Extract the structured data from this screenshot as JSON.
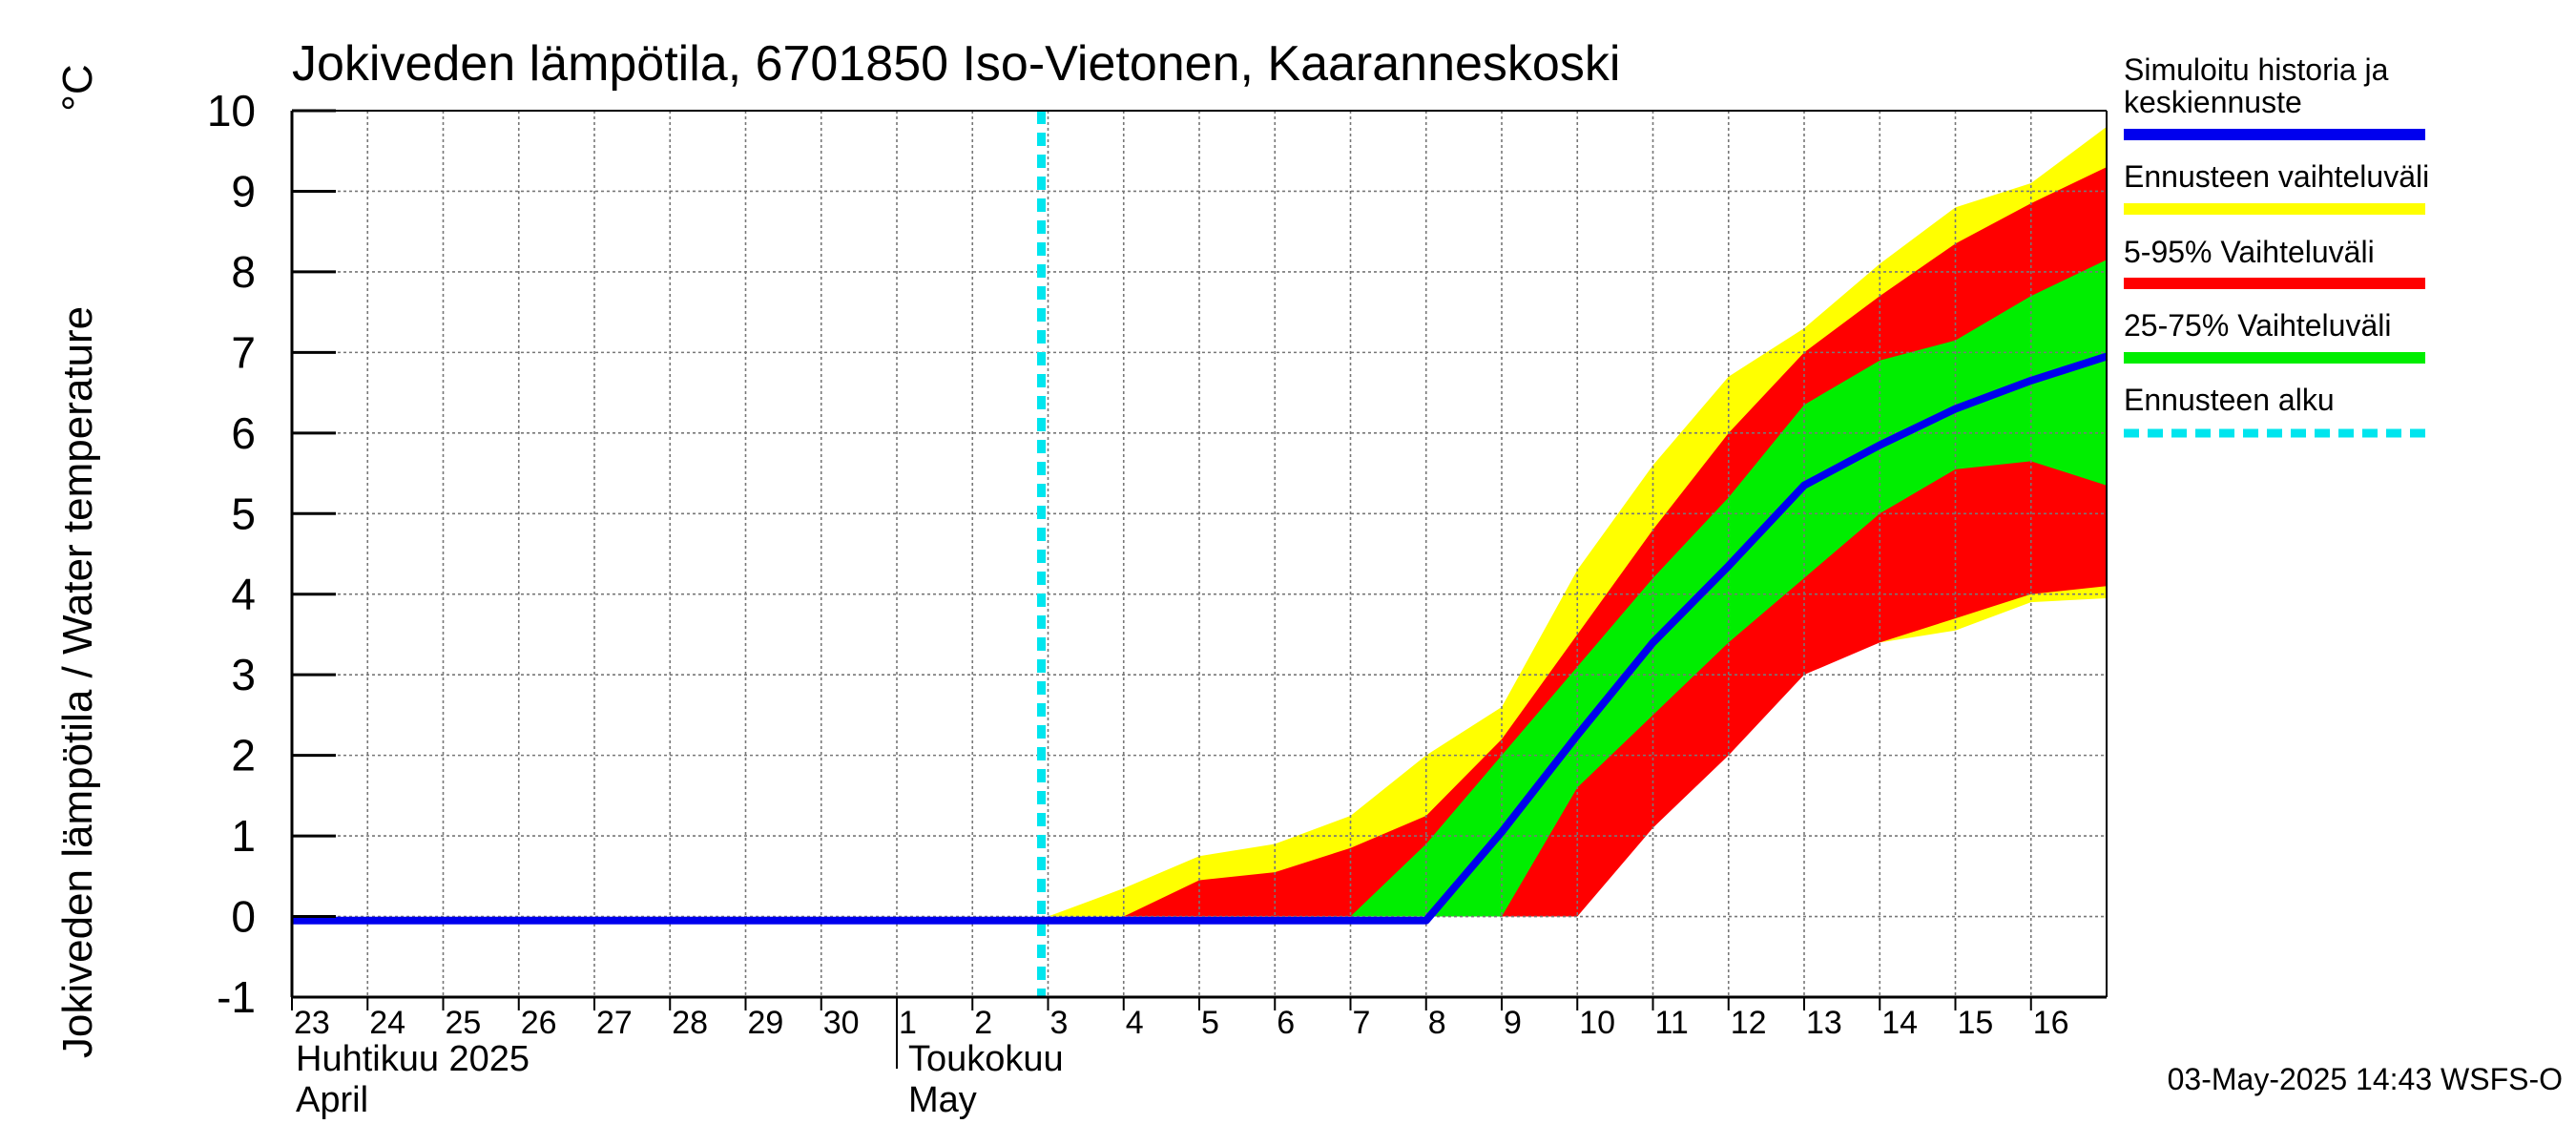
{
  "chart_data": {
    "type": "area",
    "title": "Jokiveden lämpötila, 6701850 Iso-Vietonen, Kaaranneskoski",
    "ylabel": "Jokiveden lämpötila / Water temperature",
    "yunit": "°C",
    "ylim": [
      -1,
      10
    ],
    "yticks": [
      "-1",
      "0",
      "1",
      "2",
      "3",
      "4",
      "5",
      "6",
      "7",
      "8",
      "9",
      "10"
    ],
    "x_start_day": 0,
    "x_end_day": 24,
    "xtick_labels": [
      "23",
      "24",
      "25",
      "26",
      "27",
      "28",
      "29",
      "30",
      "1",
      "2",
      "3",
      "4",
      "5",
      "6",
      "7",
      "8",
      "9",
      "10",
      "11",
      "12",
      "13",
      "14",
      "15",
      "16"
    ],
    "month_labels": [
      {
        "fi": "Huhtikuu  2025",
        "en": "April",
        "day": 0
      },
      {
        "fi": "Toukokuu",
        "en": "May",
        "day": 8
      }
    ],
    "month_separator_day": 8,
    "forecast_start_day": 10,
    "grid": true,
    "x": [
      0,
      1,
      2,
      3,
      4,
      5,
      6,
      7,
      8,
      9,
      10,
      11,
      12,
      13,
      14,
      15,
      16,
      17,
      18,
      19,
      20,
      21,
      22,
      23,
      24
    ],
    "series": [
      {
        "name": "Ennusteen vaihteluväli",
        "color": "#ffff00",
        "kind": "band",
        "from_index": 10,
        "upper": [
          0,
          0.35,
          0.75,
          0.9,
          1.25,
          2.0,
          2.6,
          4.3,
          5.6,
          6.7,
          7.3,
          8.1,
          8.8,
          9.1,
          9.8
        ],
        "lower": [
          0,
          0,
          0,
          0,
          0,
          0,
          0,
          0,
          1.2,
          2.3,
          3.1,
          3.4,
          3.55,
          3.9,
          3.95
        ]
      },
      {
        "name": "5-95% Vaihteluväli",
        "color": "#ff0000",
        "kind": "band",
        "from_index": 10,
        "upper": [
          0,
          0,
          0.45,
          0.55,
          0.85,
          1.25,
          2.2,
          3.5,
          4.8,
          6.0,
          7.0,
          7.7,
          8.35,
          8.85,
          9.3
        ],
        "lower": [
          0,
          0,
          0,
          0,
          0,
          0,
          0,
          0,
          1.1,
          2.0,
          3.0,
          3.4,
          3.7,
          4.0,
          4.1
        ]
      },
      {
        "name": "25-75% Vaihteluväli",
        "color": "#00ee00",
        "kind": "band",
        "from_index": 10,
        "upper": [
          0,
          0,
          0,
          0,
          0,
          0.9,
          2.0,
          3.1,
          4.2,
          5.2,
          6.35,
          6.9,
          7.15,
          7.7,
          8.15
        ],
        "lower": [
          0,
          0,
          0,
          0,
          0,
          0,
          0,
          1.6,
          2.5,
          3.4,
          4.2,
          5.0,
          5.55,
          5.65,
          5.35
        ]
      },
      {
        "name": "Simuloitu historia ja keskiennuste",
        "color": "#0000ee",
        "kind": "line",
        "from_index": 0,
        "values": [
          -0.05,
          -0.05,
          -0.05,
          -0.05,
          -0.05,
          -0.05,
          -0.05,
          -0.05,
          -0.05,
          -0.05,
          -0.05,
          -0.05,
          -0.05,
          -0.05,
          -0.05,
          -0.05,
          1.05,
          2.25,
          3.4,
          4.35,
          5.35,
          5.85,
          6.3,
          6.65,
          6.95
        ]
      }
    ],
    "legend": {
      "placement": "right",
      "items": [
        {
          "label": "Simuloitu historia ja keskiennuste",
          "color": "#0000ee",
          "style": "solid"
        },
        {
          "label": "Ennusteen vaihteluväli",
          "color": "#ffff00",
          "style": "solid"
        },
        {
          "label": "5-95% Vaihteluväli",
          "color": "#ff0000",
          "style": "solid"
        },
        {
          "label": "25-75% Vaihteluväli",
          "color": "#00ee00",
          "style": "solid"
        },
        {
          "label": "Ennusteen alku",
          "color": "#00e5ee",
          "style": "dashed"
        }
      ]
    },
    "footer": "03-May-2025 14:43 WSFS-O"
  }
}
